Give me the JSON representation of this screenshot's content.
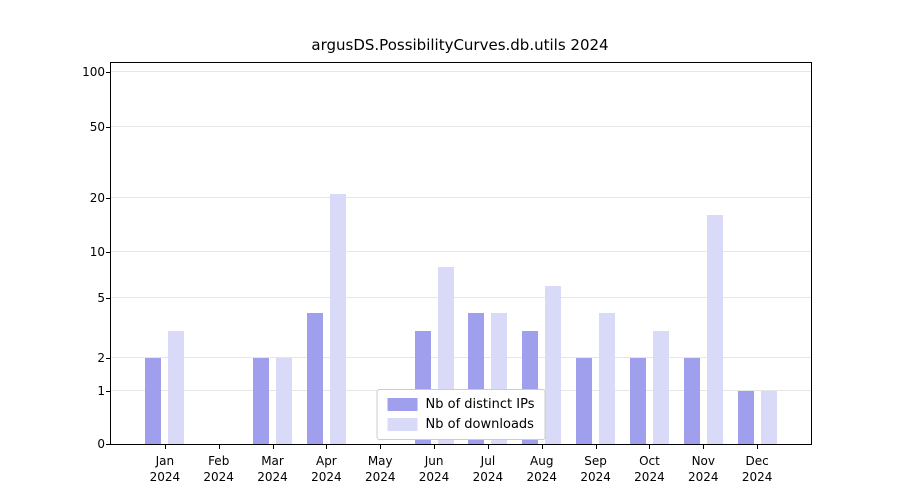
{
  "chart_data": {
    "type": "bar",
    "title": "argusDS.PossibilityCurves.db.utils 2024",
    "categories": [
      "Jan",
      "Feb",
      "Mar",
      "Apr",
      "May",
      "Jun",
      "Jul",
      "Aug",
      "Sep",
      "Oct",
      "Nov",
      "Dec"
    ],
    "year_label": "2024",
    "series": [
      {
        "name": "Nb of distinct IPs",
        "color": "#9f9fee",
        "values": [
          2,
          0,
          2,
          4,
          0,
          3,
          4,
          3,
          2,
          2,
          2,
          1
        ]
      },
      {
        "name": "Nb of downloads",
        "color": "#d9d9f8",
        "values": [
          3,
          0,
          2,
          21,
          0,
          8,
          4,
          6,
          4,
          3,
          16,
          1
        ]
      }
    ],
    "yticks": [
      0,
      1,
      2,
      5,
      10,
      20,
      50,
      100
    ],
    "yscale": "symlog",
    "ylim": [
      0,
      130
    ],
    "grid": "horizontal",
    "legend_position": "lower center"
  }
}
